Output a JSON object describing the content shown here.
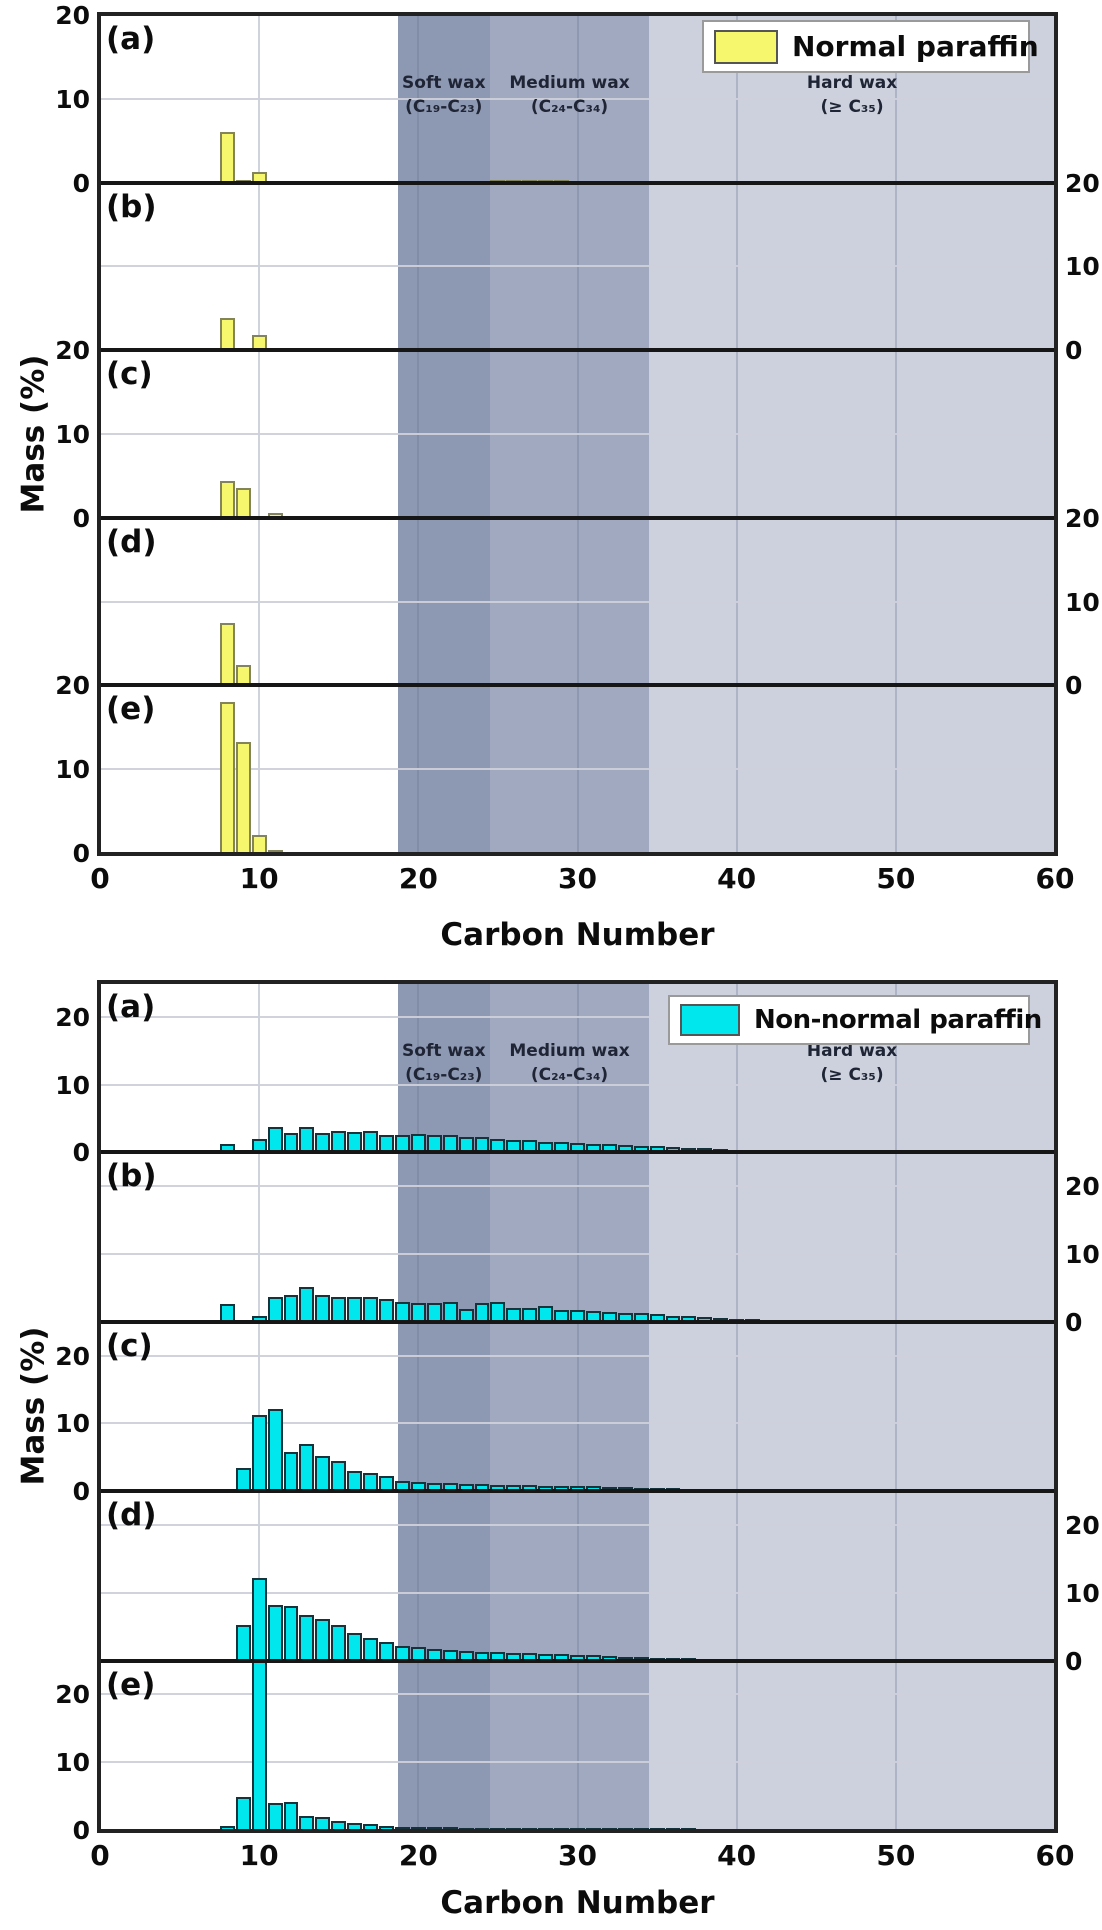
{
  "figure": {
    "xlabel": "Carbon Number",
    "ylabel": "Mass (%)",
    "x_ticks": [
      0,
      10,
      20,
      30,
      40,
      50,
      60
    ],
    "y_ticks": [
      0,
      10,
      20
    ],
    "xlim": [
      0,
      60
    ],
    "colors": {
      "background": "#ffffff",
      "frame": "#222222",
      "normal_fill": "#f7f76e",
      "normal_border": "#84845a",
      "nonnormal_fill": "#00e8ee",
      "nonnormal_border": "#16323a",
      "soft_wax_bg": "#8d98b2",
      "medium_wax_bg": "#a0a9c0",
      "hard_wax_bg": "#cdd1de"
    },
    "wax_zones": [
      {
        "label": "Soft wax",
        "sublabel": "(C₁₉-C₂₃)",
        "from": 18.7,
        "to": 24.5,
        "color": "#8d98b2"
      },
      {
        "label": "Medium wax",
        "sublabel": "(C₂₄-C₃₄)",
        "from": 24.5,
        "to": 34.5,
        "color": "#a0a9c0"
      },
      {
        "label": "Hard wax",
        "sublabel": "(≥ C₃₅)",
        "from": 34.5,
        "to": 60,
        "color": "#cdd1de"
      }
    ]
  },
  "chart_data": [
    {
      "type": "bar",
      "legend": "Normal paraffin",
      "bar_fill": "#f7f76e",
      "bar_border": "#84845a",
      "ylim": [
        0,
        20
      ],
      "panels": [
        {
          "label": "(a)",
          "tick_side": "left",
          "carbons": [
            8,
            9,
            10,
            25,
            26,
            27,
            28,
            29,
            30,
            31
          ],
          "values": [
            6.0,
            0.3,
            1.3,
            0.35,
            0.3,
            0.3,
            0.3,
            0.3,
            0.25,
            0.2
          ]
        },
        {
          "label": "(b)",
          "tick_side": "right",
          "carbons": [
            8,
            9,
            10,
            17,
            18
          ],
          "values": [
            3.9,
            0.2,
            1.8,
            0.25,
            0.2
          ]
        },
        {
          "label": "(c)",
          "tick_side": "left",
          "carbons": [
            8,
            9,
            11
          ],
          "values": [
            4.4,
            3.5,
            0.6
          ]
        },
        {
          "label": "(d)",
          "tick_side": "right",
          "carbons": [
            8,
            9,
            11
          ],
          "values": [
            7.5,
            2.4,
            0.3
          ]
        },
        {
          "label": "(e)",
          "tick_side": "left",
          "carbons": [
            8,
            9,
            10,
            11
          ],
          "values": [
            18.0,
            13.3,
            2.2,
            0.3
          ]
        }
      ]
    },
    {
      "type": "bar",
      "legend": "Non-normal paraffin",
      "bar_fill": "#00e8ee",
      "bar_border": "#16323a",
      "ylim": [
        0,
        25
      ],
      "panels": [
        {
          "label": "(a)",
          "tick_side": "left",
          "carbons": [
            8,
            10,
            11,
            12,
            13,
            14,
            15,
            16,
            17,
            18,
            19,
            20,
            21,
            22,
            23,
            24,
            25,
            26,
            27,
            28,
            29,
            30,
            31,
            32,
            33,
            34,
            35,
            36,
            37,
            38,
            39
          ],
          "values": [
            1.2,
            2.0,
            3.8,
            2.8,
            3.7,
            2.8,
            3.1,
            3.0,
            3.1,
            2.6,
            2.6,
            2.7,
            2.6,
            2.6,
            2.2,
            2.2,
            2.0,
            1.9,
            1.8,
            1.6,
            1.5,
            1.4,
            1.3,
            1.2,
            1.1,
            1.0,
            0.9,
            0.8,
            0.7,
            0.6,
            0.5
          ]
        },
        {
          "label": "(b)",
          "tick_side": "right",
          "carbons": [
            8,
            10,
            11,
            12,
            13,
            14,
            15,
            16,
            17,
            18,
            19,
            20,
            21,
            22,
            23,
            24,
            25,
            26,
            27,
            28,
            29,
            30,
            31,
            32,
            33,
            34,
            35,
            36,
            37,
            38,
            39,
            40,
            41,
            42,
            43,
            44,
            45,
            46
          ],
          "values": [
            2.7,
            0.9,
            3.7,
            3.9,
            5.1,
            3.9,
            3.6,
            3.6,
            3.7,
            3.4,
            2.9,
            2.8,
            2.8,
            2.9,
            1.9,
            2.8,
            2.9,
            2.1,
            2.0,
            2.4,
            1.8,
            1.7,
            1.6,
            1.4,
            1.3,
            1.3,
            1.1,
            0.9,
            0.8,
            0.7,
            0.5,
            0.4,
            0.35,
            0.3,
            0.25,
            0.2,
            0.15,
            0.1
          ]
        },
        {
          "label": "(c)",
          "tick_side": "left",
          "carbons": [
            9,
            10,
            11,
            12,
            13,
            14,
            15,
            16,
            17,
            18,
            19,
            20,
            21,
            22,
            23,
            24,
            25,
            26,
            27,
            28,
            29,
            30,
            31,
            32,
            33,
            34,
            35,
            36,
            37,
            38,
            39
          ],
          "values": [
            3.4,
            11.2,
            12.2,
            5.8,
            7.0,
            5.2,
            4.5,
            3.0,
            2.7,
            2.2,
            1.5,
            1.3,
            1.25,
            1.2,
            1.1,
            1.0,
            0.95,
            0.9,
            0.85,
            0.8,
            0.75,
            0.7,
            0.8,
            0.6,
            0.55,
            0.5,
            0.45,
            0.4,
            0.35,
            0.3,
            0.25
          ]
        },
        {
          "label": "(d)",
          "tick_side": "right",
          "carbons": [
            9,
            10,
            11,
            12,
            13,
            14,
            15,
            16,
            17,
            18,
            19,
            20,
            21,
            22,
            23,
            24,
            25,
            26,
            27,
            28,
            29,
            30,
            31,
            32,
            33,
            34,
            35,
            36,
            37,
            38,
            39,
            40,
            41
          ],
          "values": [
            5.2,
            12.2,
            8.2,
            8.0,
            6.7,
            6.2,
            5.2,
            4.1,
            3.4,
            2.7,
            2.2,
            2.0,
            1.7,
            1.5,
            1.4,
            1.3,
            1.2,
            1.1,
            1.05,
            1.0,
            0.95,
            0.9,
            0.8,
            0.7,
            0.6,
            0.5,
            0.45,
            0.4,
            0.35,
            0.3,
            0.25,
            0.2,
            0.15
          ]
        },
        {
          "label": "(e)",
          "tick_side": "left",
          "carbons": [
            8,
            9,
            10,
            11,
            12,
            13,
            14,
            15,
            16,
            17,
            18,
            19,
            20,
            21,
            22,
            23,
            24,
            25,
            26,
            27,
            28,
            29,
            30,
            31,
            32,
            33,
            34,
            35,
            36,
            37
          ],
          "values": [
            0.6,
            4.8,
            25.5,
            4.0,
            4.2,
            2.1,
            1.9,
            1.3,
            1.0,
            0.9,
            0.6,
            0.5,
            0.5,
            0.45,
            0.4,
            0.35,
            0.3,
            0.3,
            0.25,
            0.25,
            0.2,
            0.2,
            0.15,
            0.15,
            0.1,
            0.1,
            0.1,
            0.1,
            0.1,
            0.1
          ]
        }
      ]
    }
  ]
}
